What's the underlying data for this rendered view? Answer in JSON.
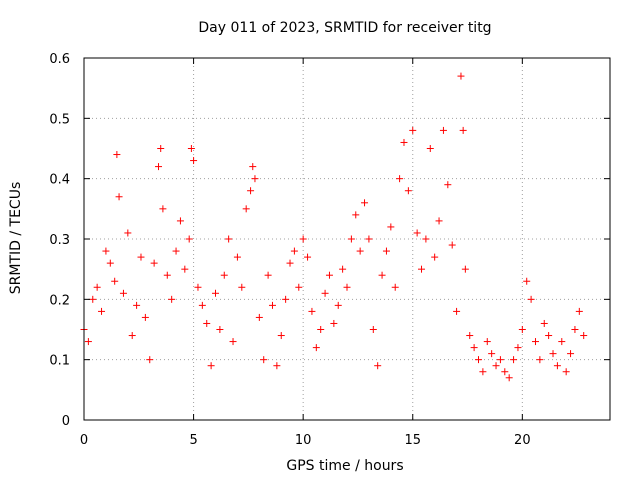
{
  "chart_data": {
    "type": "scatter",
    "title": "Day 011 of 2023, SRMTID for receiver titg",
    "xlabel": "GPS time / hours",
    "ylabel": "SRMTID / TECUs",
    "xlim": [
      0,
      24
    ],
    "ylim": [
      0,
      0.6
    ],
    "x_ticks": [
      0,
      5,
      10,
      15,
      20
    ],
    "x_tick_labels": [
      "0",
      "5",
      "10",
      "15",
      "20"
    ],
    "y_ticks": [
      0,
      0.1,
      0.2,
      0.3,
      0.4,
      0.5,
      0.6
    ],
    "y_tick_labels": [
      "0",
      "0.1",
      "0.2",
      "0.3",
      "0.4",
      "0.5",
      "0.6"
    ],
    "grid": true,
    "marker": "+",
    "color": "#ff0000",
    "series": [
      {
        "name": "SRMTID",
        "x": [
          0.0,
          0.2,
          0.4,
          0.6,
          0.8,
          1.0,
          1.2,
          1.4,
          1.5,
          1.6,
          1.8,
          2.0,
          2.2,
          2.4,
          2.6,
          2.8,
          3.0,
          3.2,
          3.4,
          3.5,
          3.6,
          3.8,
          4.0,
          4.2,
          4.4,
          4.6,
          4.8,
          4.9,
          5.0,
          5.2,
          5.4,
          5.6,
          5.8,
          6.0,
          6.2,
          6.4,
          6.6,
          6.8,
          7.0,
          7.2,
          7.4,
          7.6,
          7.7,
          7.8,
          8.0,
          8.2,
          8.4,
          8.6,
          8.8,
          9.0,
          9.2,
          9.4,
          9.6,
          9.8,
          10.0,
          10.2,
          10.4,
          10.6,
          10.8,
          11.0,
          11.2,
          11.4,
          11.6,
          11.8,
          12.0,
          12.2,
          12.4,
          12.6,
          12.8,
          13.0,
          13.2,
          13.4,
          13.6,
          13.8,
          14.0,
          14.2,
          14.4,
          14.6,
          14.8,
          15.0,
          15.2,
          15.4,
          15.6,
          15.8,
          16.0,
          16.2,
          16.4,
          16.6,
          16.8,
          17.0,
          17.2,
          17.3,
          17.4,
          17.6,
          17.8,
          18.0,
          18.2,
          18.4,
          18.6,
          18.8,
          19.0,
          19.2,
          19.4,
          19.6,
          19.8,
          20.0,
          20.2,
          20.4,
          20.6,
          20.8,
          21.0,
          21.2,
          21.4,
          21.6,
          21.8,
          22.0,
          22.2,
          22.4,
          22.6,
          22.8
        ],
        "y": [
          0.15,
          0.13,
          0.2,
          0.22,
          0.18,
          0.28,
          0.26,
          0.23,
          0.44,
          0.37,
          0.21,
          0.31,
          0.14,
          0.19,
          0.27,
          0.17,
          0.1,
          0.26,
          0.42,
          0.45,
          0.35,
          0.24,
          0.2,
          0.28,
          0.33,
          0.25,
          0.3,
          0.45,
          0.43,
          0.22,
          0.19,
          0.16,
          0.09,
          0.21,
          0.15,
          0.24,
          0.3,
          0.13,
          0.27,
          0.22,
          0.35,
          0.38,
          0.42,
          0.4,
          0.17,
          0.1,
          0.24,
          0.19,
          0.09,
          0.14,
          0.2,
          0.26,
          0.28,
          0.22,
          0.3,
          0.27,
          0.18,
          0.12,
          0.15,
          0.21,
          0.24,
          0.16,
          0.19,
          0.25,
          0.22,
          0.3,
          0.34,
          0.28,
          0.36,
          0.3,
          0.15,
          0.09,
          0.24,
          0.28,
          0.32,
          0.22,
          0.4,
          0.46,
          0.38,
          0.48,
          0.31,
          0.25,
          0.3,
          0.45,
          0.27,
          0.33,
          0.48,
          0.39,
          0.29,
          0.18,
          0.57,
          0.48,
          0.25,
          0.14,
          0.12,
          0.1,
          0.08,
          0.13,
          0.11,
          0.09,
          0.1,
          0.08,
          0.07,
          0.1,
          0.12,
          0.15,
          0.23,
          0.2,
          0.13,
          0.1,
          0.16,
          0.14,
          0.11,
          0.09,
          0.13,
          0.08,
          0.11,
          0.15,
          0.18,
          0.14
        ]
      }
    ]
  }
}
